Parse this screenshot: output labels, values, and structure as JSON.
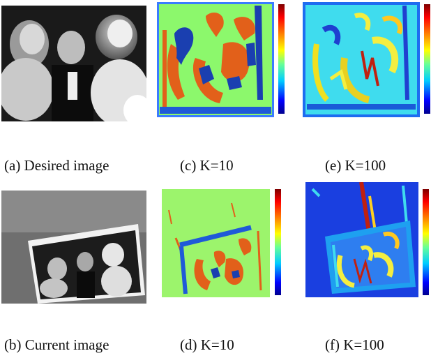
{
  "figure": {
    "panels": [
      {
        "id": "a",
        "caption": "(a) Desired image",
        "kind": "photo"
      },
      {
        "id": "b",
        "caption": "(b) Current image",
        "kind": "photo"
      },
      {
        "id": "c",
        "caption": "(c) K=10",
        "kind": "label-map"
      },
      {
        "id": "d",
        "caption": "(d) K=10",
        "kind": "label-map"
      },
      {
        "id": "e",
        "caption": "(e) K=100",
        "kind": "label-map"
      },
      {
        "id": "f",
        "caption": "(f) K=100",
        "kind": "label-map"
      }
    ],
    "colormap": "jet"
  }
}
